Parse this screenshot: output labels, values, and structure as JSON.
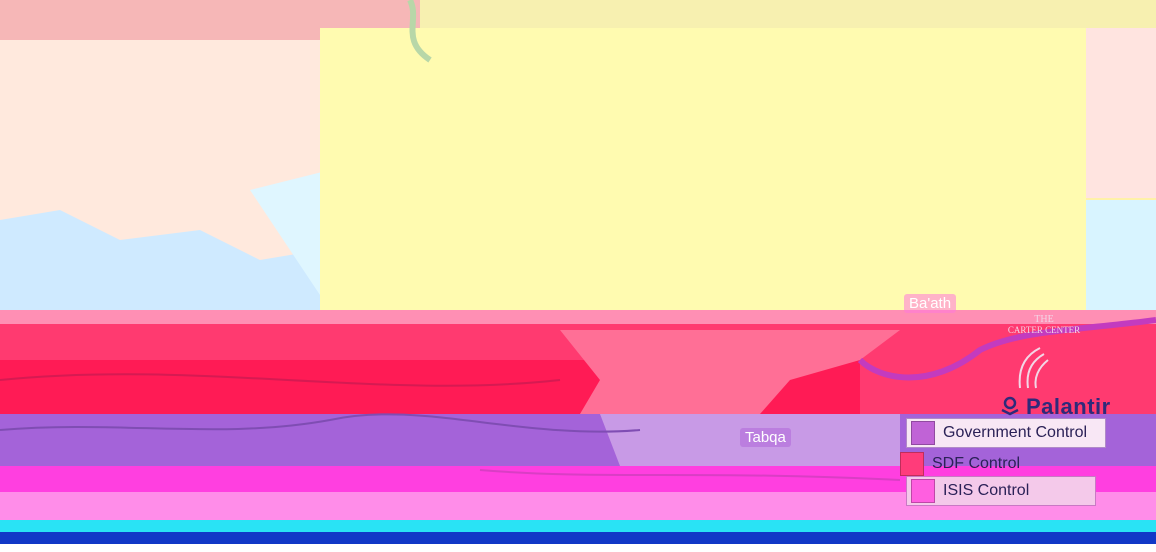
{
  "map": {
    "labels": {
      "baath": "Ba'ath",
      "tabqa": "Tabqa"
    },
    "zone_colors": {
      "government": "#b38be0",
      "sdf": "#ff3a78",
      "isis": "#ff4bd8",
      "terrain": "#fff6b6",
      "water": "#cfeaff"
    }
  },
  "logos": {
    "carter_center_line1": "THE",
    "carter_center_line2": "CARTER CENTER",
    "palantir": "Palantir"
  },
  "legend": {
    "items": [
      {
        "label": "Government Control",
        "color": "#a77de0"
      },
      {
        "label": "SDF Control",
        "color": "#ff3c7a"
      },
      {
        "label": "ISIS Control",
        "color": "#ff5fe0"
      }
    ]
  }
}
